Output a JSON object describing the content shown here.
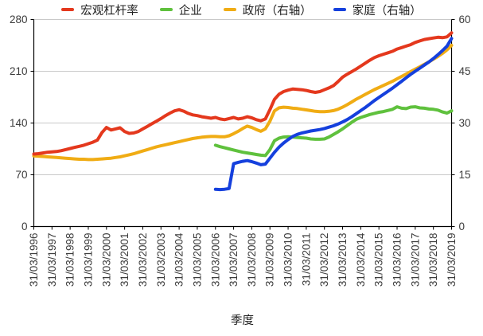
{
  "chart_data": {
    "type": "line",
    "title": "",
    "xlabel": "季度",
    "grid_color": "#c9c9c9",
    "axis_color": "#000000",
    "left_axis": {
      "ticks": [
        0,
        70,
        140,
        210,
        280
      ],
      "max": 280
    },
    "right_axis": {
      "ticks": [
        0,
        15,
        30,
        45,
        60
      ],
      "max": 60
    },
    "total_quarters": 92,
    "x_tick_labels": [
      "31/03/1996",
      "31/03/1997",
      "31/03/1998",
      "31/03/1999",
      "31/03/2000",
      "31/03/2001",
      "31/03/2002",
      "31/03/2003",
      "31/03/2004",
      "31/03/2005",
      "31/03/2006",
      "31/03/2007",
      "31/03/2008",
      "31/03/2009",
      "31/03/2010",
      "31/03/2011",
      "31/03/2012",
      "31/03/2013",
      "31/03/2014",
      "31/03/2015",
      "31/03/2016",
      "31/03/2017",
      "31/03/2018",
      "31/03/2019"
    ],
    "series": [
      {
        "id": "macro",
        "name": "宏观杠杆率",
        "axis": "left",
        "color": "#e4381d",
        "z": 4,
        "start_quarter": 0,
        "values": [
          98,
          98.5,
          99.5,
          100.5,
          101,
          101.5,
          102.5,
          104,
          105.5,
          107,
          108.5,
          110,
          112,
          114,
          117,
          127,
          134,
          130.5,
          132,
          133.5,
          128.5,
          126,
          126.5,
          128.5,
          132,
          135.5,
          139,
          142.5,
          146,
          150,
          153.5,
          156.5,
          158,
          156,
          153,
          151,
          150,
          148.5,
          147.5,
          146.5,
          147.5,
          145.5,
          144.5,
          146,
          147.5,
          145.5,
          146.5,
          148.5,
          147,
          144.5,
          143,
          145.5,
          158,
          172,
          179,
          182.5,
          184.5,
          186,
          185.5,
          185,
          184,
          182.5,
          181.5,
          182.5,
          185,
          187.5,
          190.5,
          196,
          202,
          206,
          209.5,
          213,
          217,
          221,
          225,
          228.5,
          231,
          233,
          235,
          237,
          240,
          242,
          244,
          246,
          249,
          251,
          253,
          254,
          255,
          256,
          255.5,
          256.5,
          262
        ]
      },
      {
        "id": "enterprise",
        "name": "企业",
        "axis": "left",
        "color": "#5fc13d",
        "z": 1,
        "start_quarter": 40,
        "values": [
          110,
          108,
          106.5,
          105,
          103.5,
          102,
          100.5,
          99.5,
          98.5,
          97.5,
          96.5,
          96,
          104,
          116,
          119.5,
          121,
          121.5,
          121,
          120.5,
          120,
          119.5,
          118.5,
          118,
          118,
          118.5,
          121,
          124.5,
          128,
          132,
          136.5,
          141,
          145,
          147.5,
          149.5,
          151.5,
          153,
          154.5,
          155.5,
          157,
          158.5,
          162,
          160,
          159.5,
          161.5,
          162,
          160.5,
          160,
          159,
          158.5,
          157.5,
          155,
          153.5,
          156.5
        ]
      },
      {
        "id": "government",
        "name": "政府（右轴）",
        "axis": "right",
        "color": "#f0ac14",
        "z": 2,
        "start_quarter": 0,
        "values": [
          20.5,
          20.4,
          20.3,
          20.2,
          20.1,
          20,
          19.9,
          19.8,
          19.7,
          19.6,
          19.5,
          19.5,
          19.4,
          19.4,
          19.5,
          19.6,
          19.7,
          19.8,
          20,
          20.2,
          20.5,
          20.8,
          21.1,
          21.5,
          21.9,
          22.3,
          22.7,
          23.1,
          23.4,
          23.7,
          24,
          24.3,
          24.6,
          24.9,
          25.2,
          25.5,
          25.7,
          25.9,
          26,
          26.1,
          26.1,
          26,
          26,
          26.3,
          26.9,
          27.6,
          28.4,
          29.1,
          28.7,
          28.1,
          27.6,
          28.3,
          30.5,
          33.5,
          34.4,
          34.6,
          34.5,
          34.3,
          34.2,
          34,
          33.8,
          33.6,
          33.4,
          33.3,
          33.3,
          33.4,
          33.6,
          34,
          34.6,
          35.3,
          36.1,
          36.9,
          37.6,
          38.3,
          39,
          39.7,
          40.3,
          40.9,
          41.5,
          42.1,
          42.8,
          43.5,
          44.2,
          44.9,
          45.6,
          46.3,
          47,
          47.7,
          48.5,
          49.3,
          50.2,
          51.2,
          52.5
        ]
      },
      {
        "id": "household",
        "name": "家庭（右轴）",
        "axis": "right",
        "color": "#1540dd",
        "z": 3,
        "start_quarter": 40,
        "values": [
          10.8,
          10.7,
          10.8,
          11,
          18.2,
          18.6,
          18.9,
          19.1,
          18.8,
          18.4,
          17.9,
          18.1,
          19.8,
          21.5,
          23,
          24.2,
          25.2,
          26.1,
          26.7,
          27.1,
          27.4,
          27.7,
          27.9,
          28.1,
          28.4,
          28.8,
          29.2,
          29.7,
          30.3,
          31,
          31.8,
          32.7,
          33.6,
          34.5,
          35.5,
          36.5,
          37.4,
          38.3,
          39.2,
          40.1,
          41.1,
          42.1,
          43.1,
          44.1,
          45,
          45.9,
          46.8,
          47.7,
          48.7,
          49.8,
          51,
          52.3,
          54.5
        ]
      }
    ]
  }
}
